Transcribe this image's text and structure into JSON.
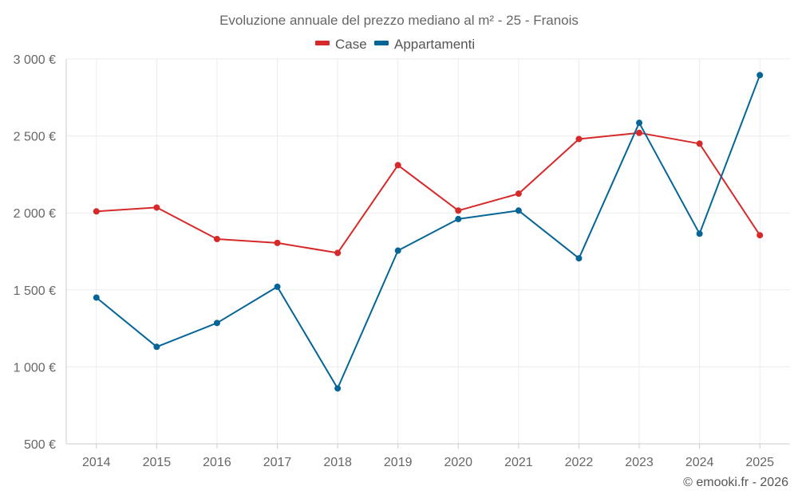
{
  "chart_data": {
    "type": "line",
    "title": "Evoluzione annuale del prezzo mediano al m² - 25 - Franois",
    "categories": [
      "2014",
      "2015",
      "2016",
      "2017",
      "2018",
      "2019",
      "2020",
      "2021",
      "2022",
      "2023",
      "2024",
      "2025"
    ],
    "series": [
      {
        "name": "Case",
        "color": "#d62a2a",
        "values": [
          2010,
          2035,
          1830,
          1805,
          1740,
          2310,
          2015,
          2125,
          2480,
          2520,
          2450,
          1855
        ]
      },
      {
        "name": "Appartamenti",
        "color": "#056597",
        "values": [
          1450,
          1130,
          1285,
          1520,
          860,
          1755,
          1960,
          2015,
          1705,
          2585,
          1865,
          2895
        ]
      }
    ],
    "ylim": [
      500,
      3000
    ],
    "yticks": [
      500,
      1000,
      1500,
      2000,
      2500,
      3000
    ],
    "ytick_labels": [
      "500 €",
      "1 000 €",
      "1 500 €",
      "2 000 €",
      "2 500 €",
      "3 000 €"
    ],
    "legend_position": "top-center",
    "grid": true
  },
  "credit": "© emooki.fr - 2026"
}
